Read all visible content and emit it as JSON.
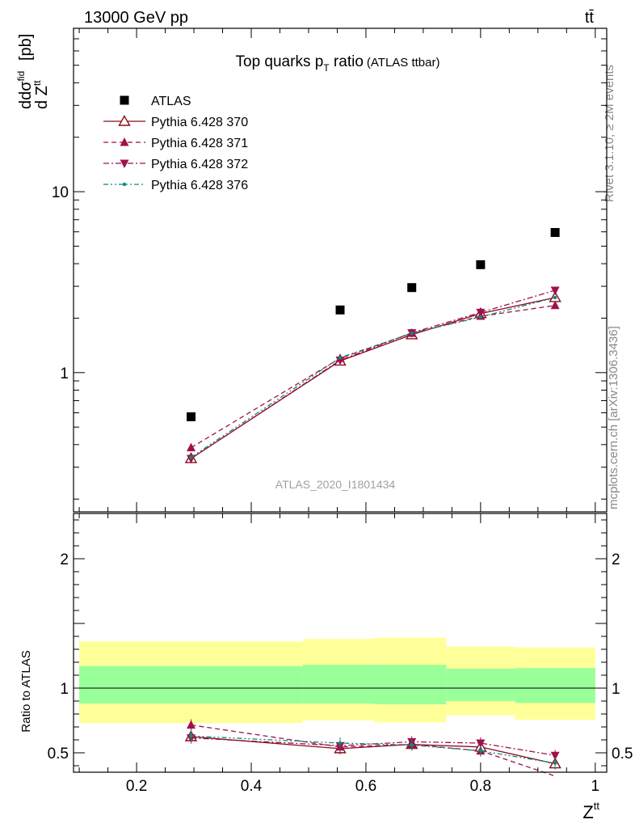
{
  "header": {
    "energy_label": "13000 GeV pp",
    "process_label": "tt̄"
  },
  "side_labels": {
    "rivet": "Rivet 3.1.10, ≥ 2M events",
    "mcplots": "mcplots.cern.ch [arXiv:1306.3436]"
  },
  "watermark": "ATLAS_2020_I1801434",
  "colors": {
    "atlas": "#000000",
    "p370": "#8b0a1a",
    "p371": "#a0104a",
    "p372": "#a0104a",
    "p376": "#0b8a7a",
    "band_inner": "#99ff99",
    "band_outer": "#ffff99"
  },
  "chart_data": [
    {
      "type": "scatter",
      "panel": "main",
      "title": "Top quarks p",
      "title_sub": "T",
      "title_mid": " ratio",
      "title_small": "(ATLAS ttbar)",
      "ylabel": {
        "a": "d",
        "b": "dσ",
        "b_sup": "fid",
        "c": "d Z",
        "c_sup": "tt",
        "d": " [pb]"
      },
      "yscale": "log",
      "ylim": [
        0.17,
        80
      ],
      "xlim": [
        0.09,
        1.02
      ],
      "yticks": [
        {
          "v": 1,
          "label": "1"
        },
        {
          "v": 10,
          "label": "10"
        }
      ],
      "legend_position": "top-left",
      "series": [
        {
          "key": "atlas",
          "name": "ATLAS",
          "marker": "square",
          "x": [
            0.295,
            0.555,
            0.68,
            0.8,
            0.93
          ],
          "y": [
            0.57,
            2.22,
            2.95,
            3.95,
            5.95
          ]
        },
        {
          "key": "p370",
          "name": "Pythia 6.428 370",
          "marker": "triangle-up-open",
          "dash": "solid",
          "x": [
            0.295,
            0.555,
            0.68,
            0.8,
            0.93
          ],
          "y": [
            0.335,
            1.16,
            1.62,
            2.12,
            2.6
          ]
        },
        {
          "key": "p371",
          "name": "Pythia 6.428 371",
          "marker": "triangle-up",
          "dash": "dashed",
          "x": [
            0.295,
            0.555,
            0.68,
            0.8,
            0.93
          ],
          "y": [
            0.385,
            1.2,
            1.65,
            2.05,
            2.35
          ]
        },
        {
          "key": "p372",
          "name": "Pythia 6.428 372",
          "marker": "triangle-down",
          "dash": "dashdot",
          "x": [
            0.295,
            0.555,
            0.68,
            0.8,
            0.93
          ],
          "y": [
            0.335,
            1.17,
            1.66,
            2.15,
            2.85
          ]
        },
        {
          "key": "p376",
          "name": "Pythia 6.428 376",
          "marker": "dot",
          "dash": "dashdotdot",
          "x": [
            0.295,
            0.555,
            0.68,
            0.8,
            0.93
          ],
          "y": [
            0.34,
            1.21,
            1.65,
            2.03,
            2.6
          ]
        }
      ]
    },
    {
      "type": "line",
      "panel": "ratio",
      "ylabel": "Ratio to ATLAS",
      "xlabel": "Z",
      "xlabel_sup": "tt",
      "ylim": [
        0.35,
        2.35
      ],
      "xlim": [
        0.09,
        1.02
      ],
      "yticks": [
        {
          "v": 0.5,
          "label": "0.5"
        },
        {
          "v": 1,
          "label": "1"
        },
        {
          "v": 2,
          "label": "2"
        }
      ],
      "xticks": [
        {
          "v": 0.2,
          "label": "0.2"
        },
        {
          "v": 0.4,
          "label": "0.4"
        },
        {
          "v": 0.6,
          "label": "0.6"
        },
        {
          "v": 0.8,
          "label": "0.8"
        },
        {
          "v": 1.0,
          "label": "1"
        }
      ],
      "reference_line": 1,
      "bands": [
        {
          "x0": 0.1,
          "x1": 0.49,
          "inner": [
            0.88,
            1.17
          ],
          "outer": [
            0.73,
            1.36
          ]
        },
        {
          "x0": 0.49,
          "x1": 0.615,
          "inner": [
            0.88,
            1.18
          ],
          "outer": [
            0.75,
            1.38
          ]
        },
        {
          "x0": 0.615,
          "x1": 0.74,
          "inner": [
            0.875,
            1.18
          ],
          "outer": [
            0.735,
            1.39
          ]
        },
        {
          "x0": 0.74,
          "x1": 0.86,
          "inner": [
            0.9,
            1.15
          ],
          "outer": [
            0.79,
            1.32
          ]
        },
        {
          "x0": 0.86,
          "x1": 1.0,
          "inner": [
            0.885,
            1.155
          ],
          "outer": [
            0.755,
            1.315
          ]
        }
      ],
      "series": [
        {
          "key": "p370",
          "name": "Pythia 6.428 370",
          "x": [
            0.295,
            0.555,
            0.68,
            0.8,
            0.93
          ],
          "y": [
            0.625,
            0.532,
            0.565,
            0.545,
            0.415
          ]
        },
        {
          "key": "p371",
          "name": "Pythia 6.428 371",
          "x": [
            0.295,
            0.555,
            0.68,
            0.8,
            0.93
          ],
          "y": [
            0.715,
            0.545,
            0.565,
            0.515,
            0.32
          ]
        },
        {
          "key": "p372",
          "name": "Pythia 6.428 372",
          "x": [
            0.295,
            0.555,
            0.68,
            0.8,
            0.93
          ],
          "y": [
            0.615,
            0.555,
            0.585,
            0.575,
            0.48
          ]
        },
        {
          "key": "p376",
          "name": "Pythia 6.428 376",
          "x": [
            0.295,
            0.555,
            0.68,
            0.8,
            0.93
          ],
          "y": [
            0.63,
            0.575,
            0.56,
            0.515,
            0.42
          ]
        }
      ]
    }
  ]
}
